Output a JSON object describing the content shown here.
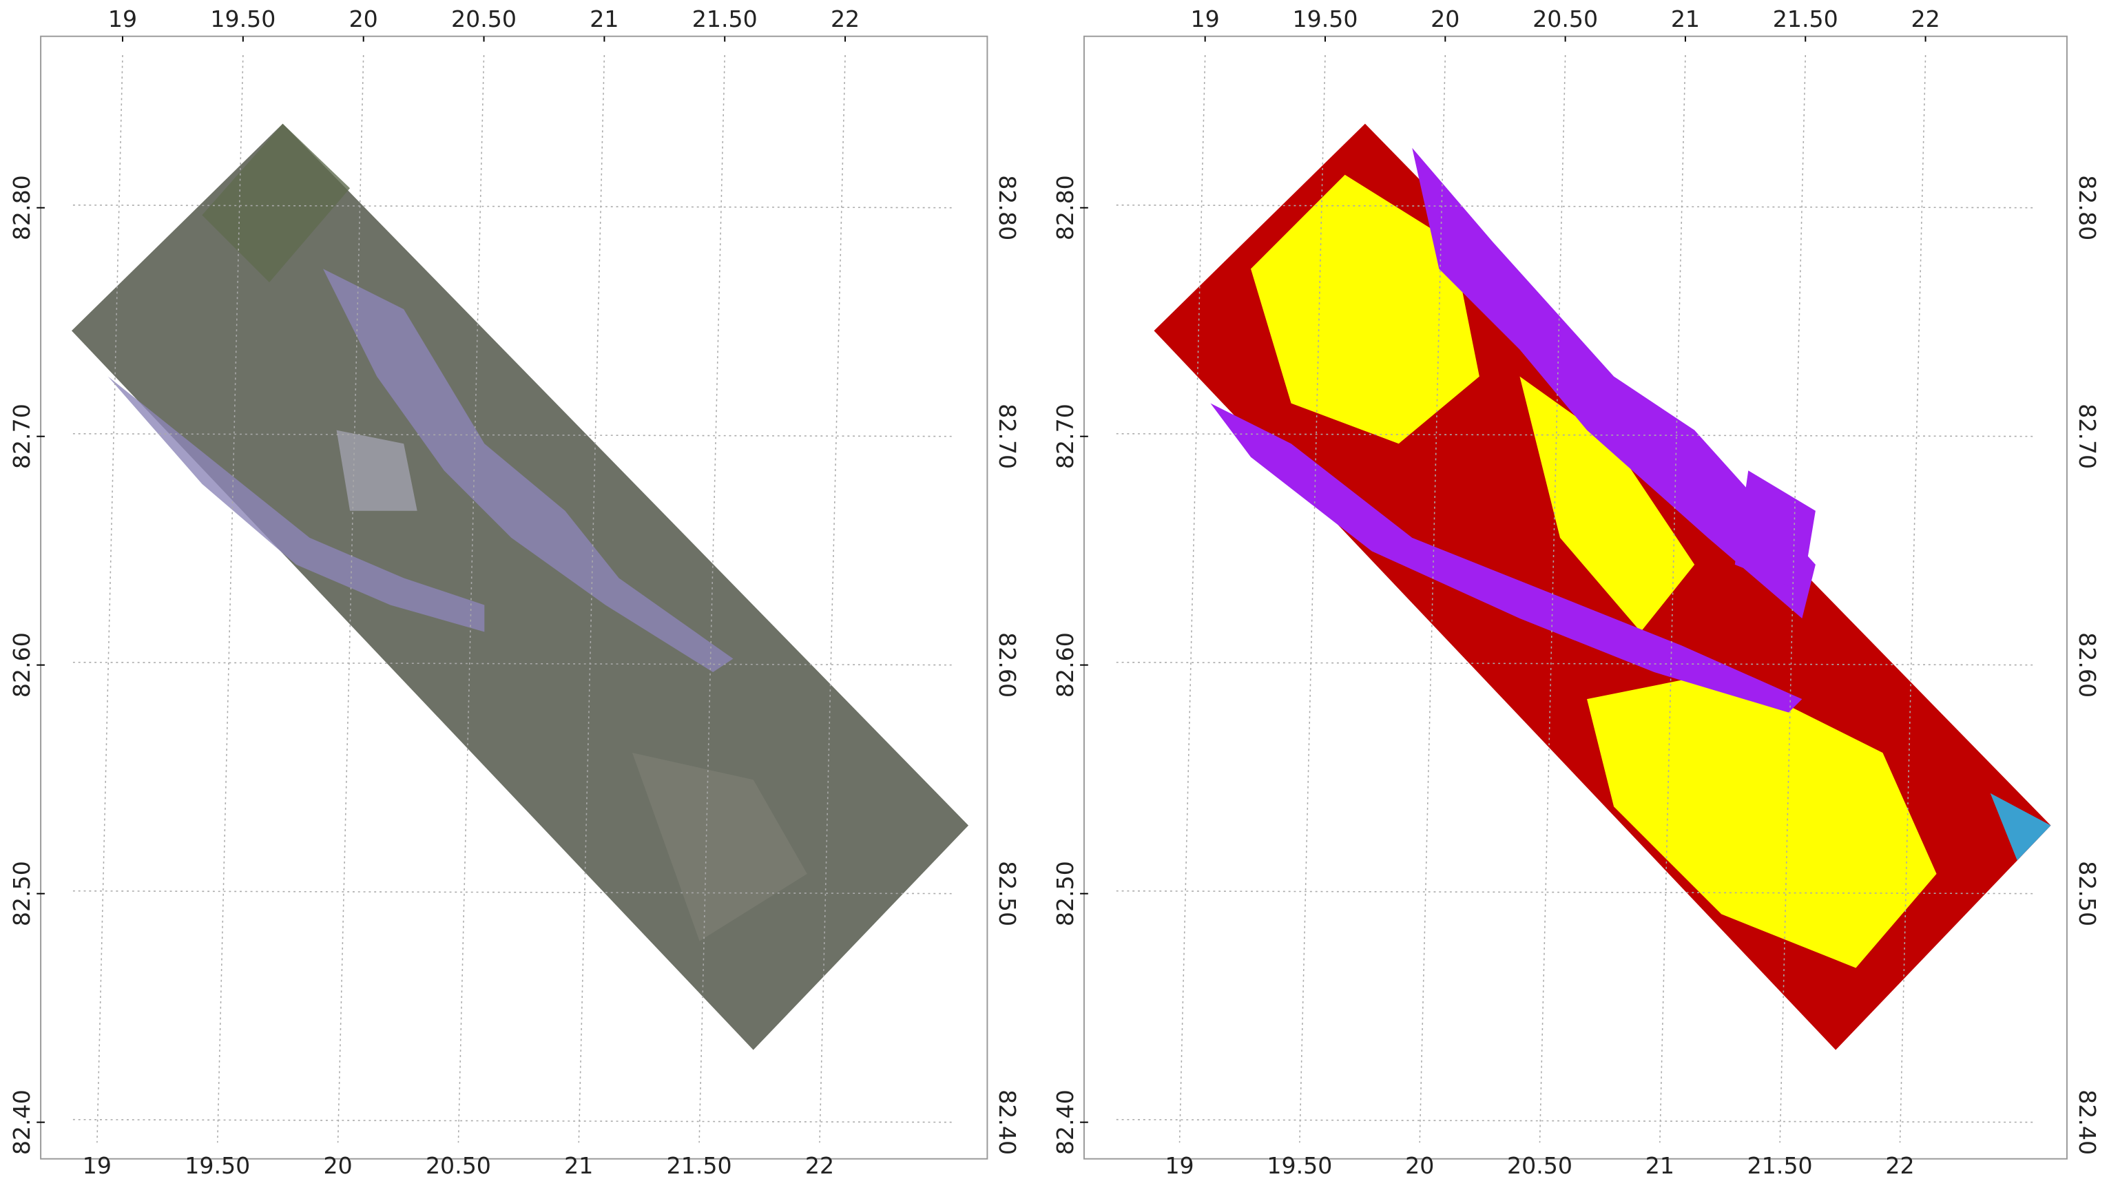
{
  "panels": [
    {
      "xlim": [
        18.66,
        22.59
      ],
      "ylim": [
        82.384,
        82.875
      ],
      "xticks": [
        19,
        {
          "value": 19.5,
          "label": "19.50"
        },
        20,
        {
          "value": 20.5,
          "label": "20.50"
        },
        21,
        {
          "value": 21.5,
          "label": "21.50"
        },
        22
      ],
      "yticks": [
        {
          "value": 82.4,
          "label": "82.40"
        },
        {
          "value": 82.5,
          "label": "82.50"
        },
        {
          "value": 82.6,
          "label": "82.60"
        },
        {
          "value": 82.7,
          "label": "82.70"
        },
        {
          "value": 82.8,
          "label": "82.80"
        }
      ]
    },
    {
      "xlim": [
        18.496,
        22.589
      ],
      "ylim": [
        82.384,
        82.875
      ],
      "xticks": [
        19,
        {
          "value": 19.5,
          "label": "19.50"
        },
        20,
        {
          "value": 20.5,
          "label": "20.50"
        },
        21,
        {
          "value": 21.5,
          "label": "21.50"
        },
        22
      ],
      "yticks": [
        {
          "value": 82.4,
          "label": "82.40"
        },
        {
          "value": 82.5,
          "label": "82.50"
        },
        {
          "value": 82.6,
          "label": "82.60"
        },
        {
          "value": 82.7,
          "label": "82.70"
        },
        {
          "value": 82.8,
          "label": "82.80"
        }
      ]
    }
  ]
}
